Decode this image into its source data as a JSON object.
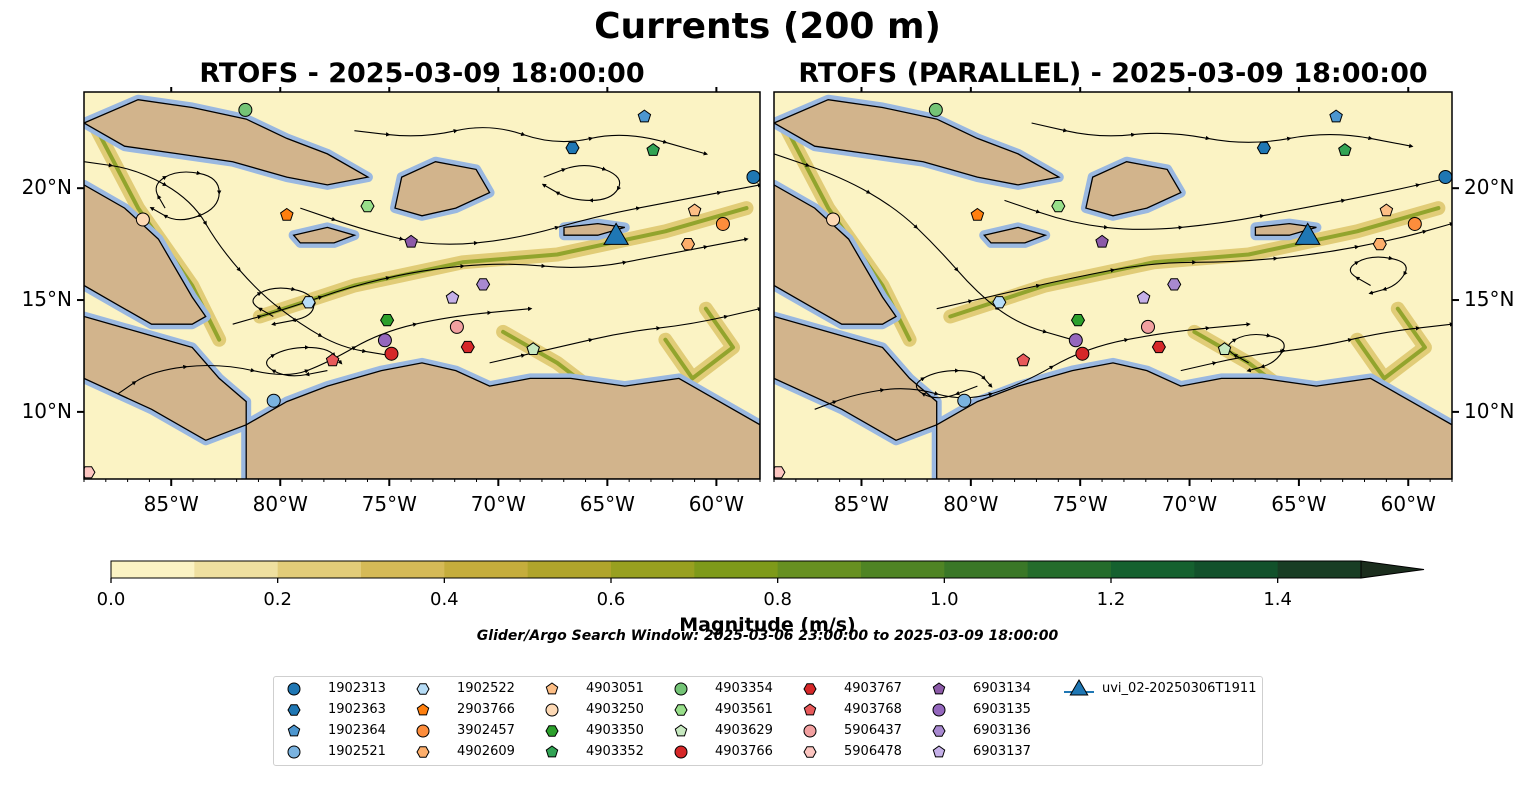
{
  "title": "Currents (200 m)",
  "panels": [
    {
      "title": "RTOFS - 2025-03-09 18:00:00"
    },
    {
      "title": "RTOFS (PARALLEL) - 2025-03-09 18:00:00"
    }
  ],
  "x_ticks": [
    "85°W",
    "80°W",
    "75°W",
    "70°W",
    "65°W",
    "60°W"
  ],
  "y_ticks": [
    "20°N",
    "15°N",
    "10°N"
  ],
  "colorbar": {
    "label": "Magnitude (m/s)",
    "ticks": [
      "0.0",
      "0.2",
      "0.4",
      "0.6",
      "0.8",
      "1.0",
      "1.2",
      "1.4"
    ],
    "range": [
      0.0,
      1.5
    ],
    "extend": "max",
    "colors": [
      "#fbf3c4",
      "#efe0a0",
      "#e2cc79",
      "#d5ba57",
      "#c5ad3c",
      "#b0a42b",
      "#98a020",
      "#7e9a1a",
      "#679021",
      "#4f8424",
      "#3a7727",
      "#246c2b",
      "#15612f",
      "#12512b",
      "#183d24",
      "#1b2d1d"
    ]
  },
  "search_window": "Glider/Argo Search Window: 2025-03-06 23:00:00 to 2025-03-09 18:00:00",
  "map_colors": {
    "ocean_light": "#fbf3c4",
    "land": "#d2b48c",
    "shelf_water": "#9ab8e0",
    "coast": "#000000"
  },
  "legend": [
    {
      "label": "1902313",
      "marker": "circle",
      "color": "#1f77b4"
    },
    {
      "label": "1902363",
      "marker": "hexagon",
      "color": "#1f77b4"
    },
    {
      "label": "1902364",
      "marker": "pentagon",
      "color": "#4c96cf"
    },
    {
      "label": "1902521",
      "marker": "circle",
      "color": "#7ab3e0"
    },
    {
      "label": "1902522",
      "marker": "hexagon",
      "color": "#b6dcf6"
    },
    {
      "label": "2903766",
      "marker": "pentagon",
      "color": "#ff7f0e"
    },
    {
      "label": "3902457",
      "marker": "circle",
      "color": "#fd8d3c"
    },
    {
      "label": "4902609",
      "marker": "hexagon",
      "color": "#fdae6b"
    },
    {
      "label": "4903051",
      "marker": "pentagon",
      "color": "#fdbe85"
    },
    {
      "label": "4903250",
      "marker": "circle",
      "color": "#fdd9b5"
    },
    {
      "label": "4903350",
      "marker": "hexagon",
      "color": "#2ca02c"
    },
    {
      "label": "4903352",
      "marker": "pentagon",
      "color": "#31a354"
    },
    {
      "label": "4903354",
      "marker": "circle",
      "color": "#74c476"
    },
    {
      "label": "4903561",
      "marker": "hexagon",
      "color": "#98df8a"
    },
    {
      "label": "4903629",
      "marker": "pentagon",
      "color": "#c7e9c0"
    },
    {
      "label": "4903766",
      "marker": "circle",
      "color": "#d62728"
    },
    {
      "label": "4903767",
      "marker": "hexagon",
      "color": "#d62728"
    },
    {
      "label": "4903768",
      "marker": "pentagon",
      "color": "#e8595a"
    },
    {
      "label": "5906437",
      "marker": "circle",
      "color": "#f2a0a0"
    },
    {
      "label": "5906478",
      "marker": "hexagon",
      "color": "#fcc5c0"
    },
    {
      "label": "6903134",
      "marker": "pentagon",
      "color": "#8c5aa8"
    },
    {
      "label": "6903135",
      "marker": "circle",
      "color": "#9467bd"
    },
    {
      "label": "6903136",
      "marker": "hexagon",
      "color": "#a889d0"
    },
    {
      "label": "6903137",
      "marker": "pentagon",
      "color": "#c5b0e8"
    },
    {
      "label": "uvi_02-20250306T1911",
      "marker": "triangle",
      "color": "#1f77b4"
    }
  ],
  "chart_data": {
    "type": "map",
    "extent_lon": [
      -89.0,
      -58.0
    ],
    "extent_lat": [
      7.0,
      24.3
    ],
    "observations": [
      {
        "id": "1902313",
        "lon": -58.3,
        "lat": 20.5,
        "marker": "circle",
        "color": "#1f77b4"
      },
      {
        "id": "1902363",
        "lon": -66.6,
        "lat": 21.8,
        "marker": "hexagon",
        "color": "#1f77b4"
      },
      {
        "id": "1902364",
        "lon": -63.3,
        "lat": 23.2,
        "marker": "pentagon",
        "color": "#4c96cf"
      },
      {
        "id": "1902521",
        "lon": -80.3,
        "lat": 10.5,
        "marker": "circle",
        "color": "#7ab3e0"
      },
      {
        "id": "1902522",
        "lon": -78.7,
        "lat": 14.9,
        "marker": "hexagon",
        "color": "#b6dcf6"
      },
      {
        "id": "2903766",
        "lon": -79.7,
        "lat": 18.8,
        "marker": "pentagon",
        "color": "#ff7f0e"
      },
      {
        "id": "3902457",
        "lon": -59.7,
        "lat": 18.4,
        "marker": "circle",
        "color": "#fd8d3c"
      },
      {
        "id": "4902609",
        "lon": -61.3,
        "lat": 17.5,
        "marker": "hexagon",
        "color": "#fdae6b"
      },
      {
        "id": "4903051",
        "lon": -61.0,
        "lat": 19.0,
        "marker": "pentagon",
        "color": "#fdbe85"
      },
      {
        "id": "4903250",
        "lon": -86.3,
        "lat": 18.6,
        "marker": "circle",
        "color": "#fdd9b5"
      },
      {
        "id": "4903350",
        "lon": -75.1,
        "lat": 14.1,
        "marker": "hexagon",
        "color": "#2ca02c"
      },
      {
        "id": "4903352",
        "lon": -62.9,
        "lat": 21.7,
        "marker": "pentagon",
        "color": "#31a354"
      },
      {
        "id": "4903354",
        "lon": -81.6,
        "lat": 23.5,
        "marker": "circle",
        "color": "#74c476"
      },
      {
        "id": "4903561",
        "lon": -76.0,
        "lat": 19.2,
        "marker": "hexagon",
        "color": "#98df8a"
      },
      {
        "id": "4903629",
        "lon": -68.4,
        "lat": 12.8,
        "marker": "pentagon",
        "color": "#c7e9c0"
      },
      {
        "id": "4903766",
        "lon": -74.9,
        "lat": 12.6,
        "marker": "circle",
        "color": "#d62728"
      },
      {
        "id": "4903767",
        "lon": -71.4,
        "lat": 12.9,
        "marker": "hexagon",
        "color": "#d62728"
      },
      {
        "id": "4903768",
        "lon": -77.6,
        "lat": 12.3,
        "marker": "pentagon",
        "color": "#e8595a"
      },
      {
        "id": "5906437",
        "lon": -71.9,
        "lat": 13.8,
        "marker": "circle",
        "color": "#f2a0a0"
      },
      {
        "id": "5906478",
        "lon": -88.8,
        "lat": 7.3,
        "marker": "hexagon",
        "color": "#fcc5c0"
      },
      {
        "id": "6903134",
        "lon": -74.0,
        "lat": 17.6,
        "marker": "pentagon",
        "color": "#8c5aa8"
      },
      {
        "id": "6903135",
        "lon": -75.2,
        "lat": 13.2,
        "marker": "circle",
        "color": "#9467bd"
      },
      {
        "id": "6903136",
        "lon": -70.7,
        "lat": 15.7,
        "marker": "hexagon",
        "color": "#a889d0"
      },
      {
        "id": "6903137",
        "lon": -72.1,
        "lat": 15.1,
        "marker": "pentagon",
        "color": "#c5b0e8"
      },
      {
        "id": "uvi_02-20250306T1911",
        "lon": -64.6,
        "lat": 17.8,
        "marker": "triangle",
        "color": "#1f77b4"
      }
    ]
  }
}
